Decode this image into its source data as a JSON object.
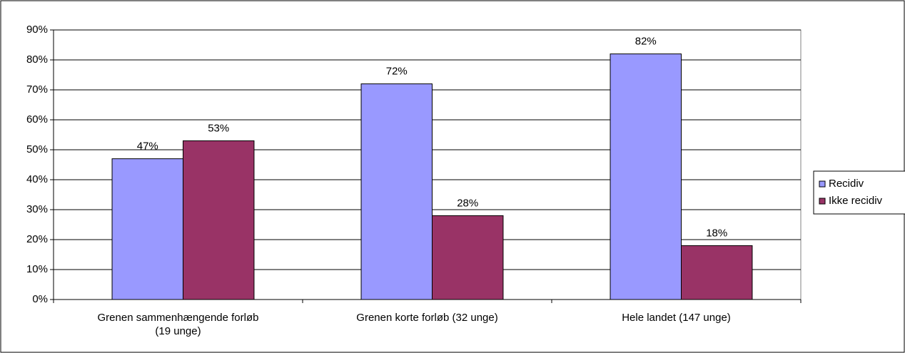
{
  "chart_data": {
    "type": "bar",
    "categories": [
      "Grenen sammenhængende forløb (19 unge)",
      "Grenen korte forløb (32 unge)",
      "Hele landet (147 unge)"
    ],
    "series": [
      {
        "name": "Recidiv",
        "color": "#9999ff",
        "values": [
          47,
          72,
          82
        ],
        "value_labels": [
          "47%",
          "72%",
          "82%"
        ]
      },
      {
        "name": "Ikke recidiv",
        "color": "#993366",
        "values": [
          53,
          28,
          18
        ],
        "value_labels": [
          "53%",
          "28%",
          "18%"
        ]
      }
    ],
    "ylim": [
      0,
      90
    ],
    "yticks": [
      {
        "value": 0,
        "label": "0%"
      },
      {
        "value": 10,
        "label": "10%"
      },
      {
        "value": 20,
        "label": "20%"
      },
      {
        "value": 30,
        "label": "30%"
      },
      {
        "value": 40,
        "label": "40%"
      },
      {
        "value": 50,
        "label": "50%"
      },
      {
        "value": 60,
        "label": "60%"
      },
      {
        "value": 70,
        "label": "70%"
      },
      {
        "value": 80,
        "label": "80%"
      },
      {
        "value": 90,
        "label": "90%"
      }
    ],
    "grid": true,
    "legend": "right"
  }
}
